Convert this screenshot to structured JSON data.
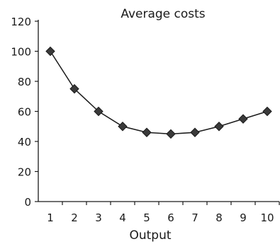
{
  "chart_data": {
    "type": "line",
    "title": "Average costs",
    "xlabel": "Output",
    "ylabel": "",
    "categories": [
      "1",
      "2",
      "3",
      "4",
      "5",
      "6",
      "7",
      "8",
      "9",
      "10"
    ],
    "x": [
      1,
      2,
      3,
      4,
      5,
      6,
      7,
      8,
      9,
      10
    ],
    "series": [
      {
        "values": [
          100,
          75,
          60,
          50,
          46,
          45,
          46,
          50,
          55,
          60
        ],
        "marker": "diamond",
        "color": "#3a3a3a"
      }
    ],
    "ylim": [
      0,
      120
    ],
    "yticks": [
      "0",
      "20",
      "40",
      "60",
      "80",
      "100",
      "120"
    ],
    "grid": false,
    "legend": "none"
  }
}
